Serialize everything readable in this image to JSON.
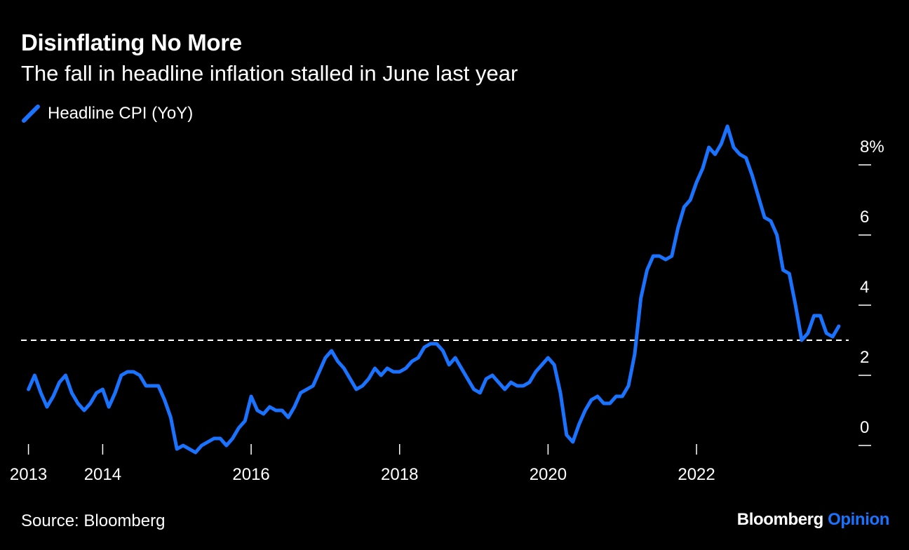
{
  "header": {
    "title": "Disinflating No More",
    "subtitle": "The fall in headline inflation stalled in June last year"
  },
  "footer": {
    "source": "Source: Bloomberg",
    "brand_main": "Bloomberg",
    "brand_accent": "Opinion"
  },
  "colors": {
    "series": "#1a73ff",
    "background": "#000000",
    "text": "#ffffff",
    "reference": "#ffffff"
  },
  "chart_data": {
    "type": "line",
    "title": "Disinflating No More",
    "subtitle": "The fall in headline inflation stalled in June last year",
    "xlabel": "",
    "ylabel": "",
    "ylim": [
      -0.3,
      9.5
    ],
    "xlim": [
      2012.9,
      2024.05
    ],
    "y_ticks": [
      0,
      2,
      4,
      6,
      8
    ],
    "y_tick_labels": [
      "0",
      "2",
      "4",
      "6",
      "8%"
    ],
    "x_ticks": [
      2013,
      2014,
      2016,
      2018,
      2020,
      2022
    ],
    "x_tick_labels": [
      "2013",
      "2014",
      "2016",
      "2018",
      "2020",
      "2022"
    ],
    "reference_line": {
      "y": 3.0,
      "style": "dashed"
    },
    "grid": false,
    "legend": "top-left",
    "series": [
      {
        "name": "Headline CPI (YoY)",
        "start": "2013-01",
        "frequency": "monthly",
        "values": [
          1.6,
          2.0,
          1.5,
          1.1,
          1.4,
          1.8,
          2.0,
          1.5,
          1.2,
          1.0,
          1.2,
          1.5,
          1.6,
          1.1,
          1.5,
          2.0,
          2.1,
          2.1,
          2.0,
          1.7,
          1.7,
          1.7,
          1.3,
          0.8,
          -0.1,
          0.0,
          -0.1,
          -0.2,
          0.0,
          0.1,
          0.2,
          0.2,
          0.0,
          0.2,
          0.5,
          0.7,
          1.4,
          1.0,
          0.9,
          1.1,
          1.0,
          1.0,
          0.8,
          1.1,
          1.5,
          1.6,
          1.7,
          2.1,
          2.5,
          2.7,
          2.4,
          2.2,
          1.9,
          1.6,
          1.7,
          1.9,
          2.2,
          2.0,
          2.2,
          2.1,
          2.1,
          2.2,
          2.4,
          2.5,
          2.8,
          2.9,
          2.9,
          2.7,
          2.3,
          2.5,
          2.2,
          1.9,
          1.6,
          1.5,
          1.9,
          2.0,
          1.8,
          1.6,
          1.8,
          1.7,
          1.7,
          1.8,
          2.1,
          2.3,
          2.5,
          2.3,
          1.5,
          0.3,
          0.1,
          0.6,
          1.0,
          1.3,
          1.4,
          1.2,
          1.2,
          1.4,
          1.4,
          1.7,
          2.6,
          4.2,
          5.0,
          5.4,
          5.4,
          5.3,
          5.4,
          6.2,
          6.8,
          7.0,
          7.5,
          7.9,
          8.5,
          8.3,
          8.6,
          9.1,
          8.5,
          8.3,
          8.2,
          7.7,
          7.1,
          6.5,
          6.4,
          6.0,
          5.0,
          4.9,
          4.0,
          3.0,
          3.2,
          3.7,
          3.7,
          3.2,
          3.1,
          3.4
        ]
      }
    ]
  }
}
